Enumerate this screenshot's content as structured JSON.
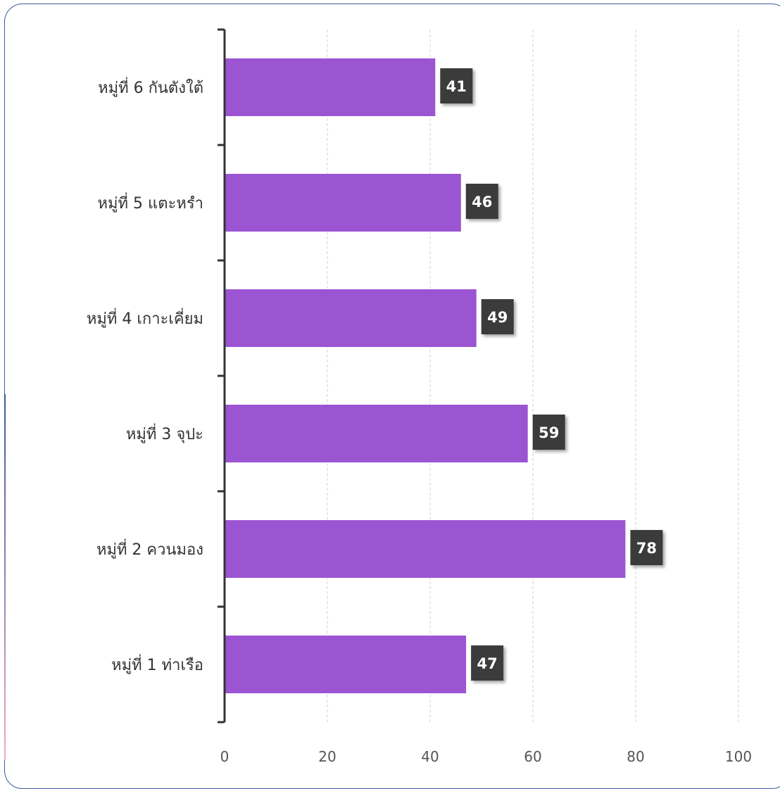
{
  "chart_data": {
    "type": "bar",
    "orientation": "horizontal",
    "categories": [
      "หมู่ที่ 6 กันตังใต้",
      "หมู่ที่ 5 แตะหรำ",
      "หมู่ที่ 4 เกาะเคี่ยม",
      "หมู่ที่ 3 จุปะ",
      "หมู่ที่ 2 ควนมอง",
      "หมู่ที่ 1 ท่าเรือ"
    ],
    "values": [
      41,
      46,
      49,
      59,
      78,
      47
    ],
    "xlim": [
      0,
      100
    ],
    "x_ticks": [
      0,
      20,
      40,
      60,
      80,
      100
    ],
    "grid": "vertical dashed",
    "colors": {
      "bar": "#9b55d3",
      "label_bg": "#3b3b3b",
      "axis": "#333333",
      "grid": "#d0d0d0"
    }
  }
}
